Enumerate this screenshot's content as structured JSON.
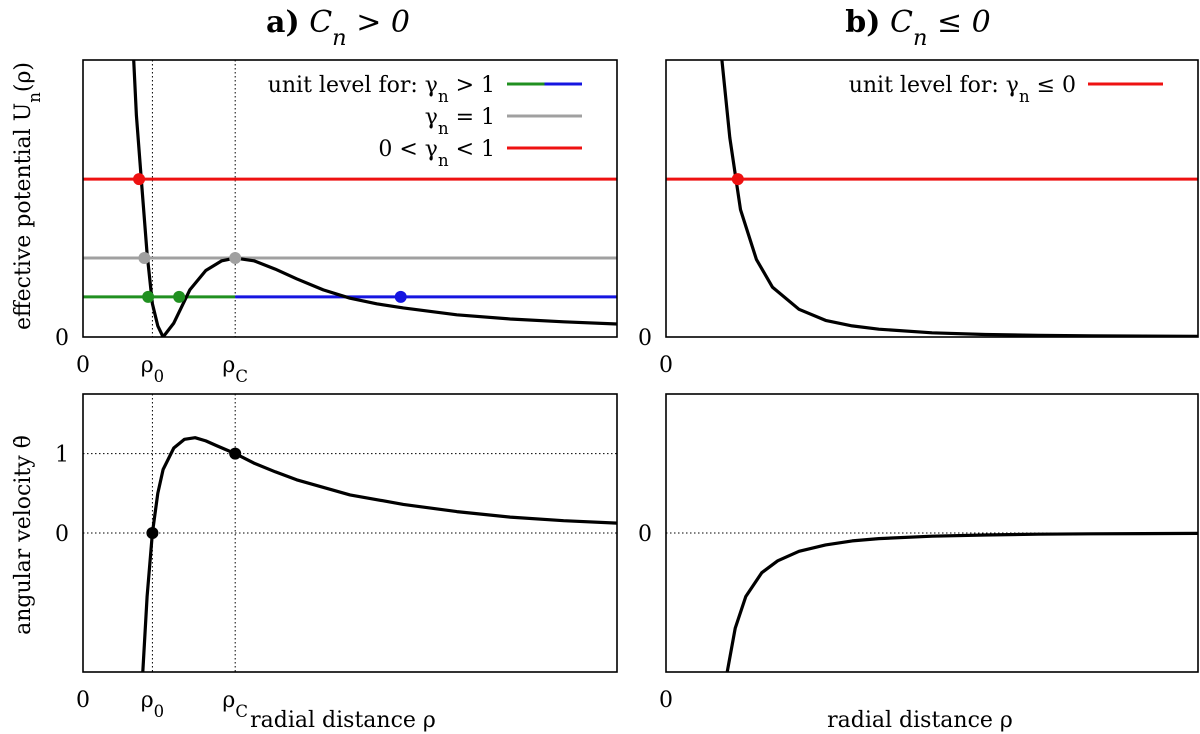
{
  "chart_data": [
    {
      "type": "line",
      "panel": "top-left",
      "title_prefix": "a)",
      "title_math": "C_n > 0",
      "ylabel": "effective potential U_n(ρ)",
      "xlabel": "",
      "x_ticks": [
        "0",
        "ρ_0",
        "ρ_C"
      ],
      "y_ticks": [
        "0"
      ],
      "xlim": [
        0,
        10
      ],
      "ylim": [
        0,
        1
      ],
      "guides_x": [
        1.3,
        2.85
      ],
      "series": [
        {
          "name": "U_n(ρ)",
          "color": "#000000",
          "x": [
            0.95,
            1.0,
            1.1,
            1.2,
            1.3,
            1.4,
            1.5,
            1.7,
            2.0,
            2.3,
            2.6,
            2.85,
            3.2,
            3.6,
            4.0,
            4.5,
            5.0,
            5.5,
            6.0,
            7.0,
            8.0,
            9.0,
            10.0
          ],
          "y": [
            1.0,
            0.8,
            0.55,
            0.3,
            0.12,
            0.04,
            0.0,
            0.05,
            0.17,
            0.24,
            0.275,
            0.285,
            0.275,
            0.245,
            0.21,
            0.17,
            0.14,
            0.12,
            0.105,
            0.08,
            0.065,
            0.055,
            0.047
          ]
        }
      ],
      "levels": [
        {
          "name": "0 < γ_n < 1",
          "y": 0.57,
          "x_from": 0,
          "x_to": 10,
          "color": "#ee1111"
        },
        {
          "name": "γ_n = 1",
          "y": 0.285,
          "x_from": 0,
          "x_to": 10,
          "color": "#a0a0a0"
        },
        {
          "name": "γ_n > 1 (bound)",
          "y": 0.145,
          "x_from": 0,
          "x_to": 2.85,
          "color": "#209020"
        },
        {
          "name": "γ_n > 1 (unbound)",
          "y": 0.145,
          "x_from": 2.85,
          "x_to": 10,
          "color": "#1515e0"
        }
      ],
      "points": [
        {
          "x": 1.05,
          "y": 0.57,
          "color": "#ee1111"
        },
        {
          "x": 1.15,
          "y": 0.285,
          "color": "#a0a0a0"
        },
        {
          "x": 2.85,
          "y": 0.285,
          "color": "#a0a0a0"
        },
        {
          "x": 1.22,
          "y": 0.145,
          "color": "#209020"
        },
        {
          "x": 1.8,
          "y": 0.145,
          "color": "#209020"
        },
        {
          "x": 5.95,
          "y": 0.145,
          "color": "#1515e0"
        }
      ],
      "legend": {
        "placement": "top-right",
        "header": "unit level for:",
        "entries": [
          {
            "label": "γ_n > 1",
            "colors": [
              "#209020",
              "#1515e0"
            ]
          },
          {
            "label": "γ_n = 1",
            "colors": [
              "#a0a0a0"
            ]
          },
          {
            "label": "0 < γ_n < 1",
            "colors": [
              "#ee1111"
            ]
          }
        ]
      }
    },
    {
      "type": "line",
      "panel": "top-right",
      "title_prefix": "b)",
      "title_math": "C_n ≤ 0",
      "ylabel": "",
      "xlabel": "",
      "x_ticks": [
        "0"
      ],
      "y_ticks": [
        "0"
      ],
      "xlim": [
        0,
        10
      ],
      "ylim": [
        0,
        1
      ],
      "series": [
        {
          "name": "U_n(ρ)",
          "color": "#000000",
          "x": [
            1.05,
            1.2,
            1.4,
            1.7,
            2.0,
            2.5,
            3.0,
            3.5,
            4.0,
            5.0,
            6.0,
            7.0,
            8.0,
            10.0
          ],
          "y": [
            1.0,
            0.72,
            0.46,
            0.28,
            0.18,
            0.1,
            0.06,
            0.04,
            0.028,
            0.015,
            0.009,
            0.006,
            0.004,
            0.002
          ]
        }
      ],
      "levels": [
        {
          "name": "γ_n ≤ 0",
          "y": 0.57,
          "x_from": 0,
          "x_to": 10,
          "color": "#ee1111"
        }
      ],
      "points": [
        {
          "x": 1.35,
          "y": 0.57,
          "color": "#ee1111"
        }
      ],
      "legend": {
        "placement": "top-right",
        "header": "unit level for:",
        "entries": [
          {
            "label": "γ_n ≤ 0",
            "colors": [
              "#ee1111"
            ]
          }
        ]
      }
    },
    {
      "type": "line",
      "panel": "bottom-left",
      "ylabel": "angular velocity θ̇",
      "xlabel": "radial distance ρ",
      "x_ticks": [
        "0",
        "ρ_0",
        "ρ_C"
      ],
      "y_ticks": [
        "0",
        "1"
      ],
      "xlim": [
        0,
        10
      ],
      "ylim": [
        -1.75,
        1.75
      ],
      "guides_x": [
        1.3,
        2.85
      ],
      "guides_y": [
        0,
        1
      ],
      "series": [
        {
          "name": "θ̇(ρ)",
          "color": "#000000",
          "x": [
            1.12,
            1.2,
            1.3,
            1.4,
            1.5,
            1.7,
            1.9,
            2.1,
            2.3,
            2.5,
            2.85,
            3.2,
            3.6,
            4.0,
            5.0,
            6.0,
            7.0,
            8.0,
            9.0,
            10.0
          ],
          "y": [
            -1.75,
            -0.8,
            0.0,
            0.5,
            0.8,
            1.07,
            1.18,
            1.2,
            1.16,
            1.1,
            1.0,
            0.88,
            0.77,
            0.67,
            0.48,
            0.36,
            0.27,
            0.2,
            0.155,
            0.125
          ]
        }
      ],
      "points": [
        {
          "x": 1.3,
          "y": 0.0,
          "color": "#000000"
        },
        {
          "x": 2.85,
          "y": 1.0,
          "color": "#000000"
        }
      ]
    },
    {
      "type": "line",
      "panel": "bottom-right",
      "ylabel": "",
      "xlabel": "radial distance ρ",
      "x_ticks": [
        "0"
      ],
      "y_ticks": [
        "0"
      ],
      "xlim": [
        0,
        10
      ],
      "ylim": [
        -1.75,
        1.75
      ],
      "guides_y": [
        0
      ],
      "series": [
        {
          "name": "θ̇(ρ)",
          "color": "#000000",
          "x": [
            1.15,
            1.3,
            1.5,
            1.8,
            2.1,
            2.5,
            3.0,
            3.5,
            4.0,
            5.0,
            6.0,
            7.0,
            8.0,
            10.0
          ],
          "y": [
            -1.75,
            -1.2,
            -0.8,
            -0.5,
            -0.35,
            -0.23,
            -0.15,
            -0.1,
            -0.07,
            -0.04,
            -0.025,
            -0.015,
            -0.01,
            -0.005
          ]
        }
      ],
      "points": []
    }
  ]
}
